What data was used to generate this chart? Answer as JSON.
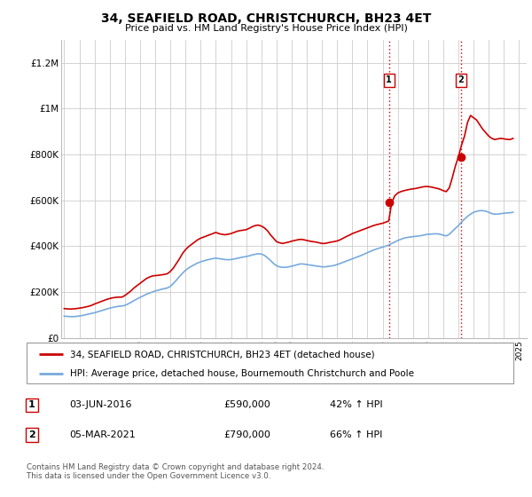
{
  "title": "34, SEAFIELD ROAD, CHRISTCHURCH, BH23 4ET",
  "subtitle": "Price paid vs. HM Land Registry's House Price Index (HPI)",
  "ylabel_ticks": [
    "£0",
    "£200K",
    "£400K",
    "£600K",
    "£800K",
    "£1M",
    "£1.2M"
  ],
  "ytick_values": [
    0,
    200000,
    400000,
    600000,
    800000,
    1000000,
    1200000
  ],
  "ylim": [
    0,
    1300000
  ],
  "xlim_start": 1994.8,
  "xlim_end": 2025.5,
  "red_color": "#cc0000",
  "blue_color": "#77aadd",
  "sale1_year": 2016.42,
  "sale1_price": 590000,
  "sale2_year": 2021.17,
  "sale2_price": 790000,
  "legend_red_label": "34, SEAFIELD ROAD, CHRISTCHURCH, BH23 4ET (detached house)",
  "legend_blue_label": "HPI: Average price, detached house, Bournemouth Christchurch and Poole",
  "table_row1": [
    "1",
    "03-JUN-2016",
    "£590,000",
    "42% ↑ HPI"
  ],
  "table_row2": [
    "2",
    "05-MAR-2021",
    "£790,000",
    "66% ↑ HPI"
  ],
  "footer": "Contains HM Land Registry data © Crown copyright and database right 2024.\nThis data is licensed under the Open Government Licence v3.0.",
  "grid_color": "#cccccc",
  "hpi_red_years": [
    1995.0,
    1995.2,
    1995.4,
    1995.6,
    1995.8,
    1996.0,
    1996.2,
    1996.4,
    1996.6,
    1996.8,
    1997.0,
    1997.2,
    1997.4,
    1997.6,
    1997.8,
    1998.0,
    1998.2,
    1998.4,
    1998.6,
    1998.8,
    1999.0,
    1999.2,
    1999.4,
    1999.6,
    1999.8,
    2000.0,
    2000.2,
    2000.4,
    2000.6,
    2000.8,
    2001.0,
    2001.2,
    2001.4,
    2001.6,
    2001.8,
    2002.0,
    2002.2,
    2002.4,
    2002.6,
    2002.8,
    2003.0,
    2003.2,
    2003.4,
    2003.6,
    2003.8,
    2004.0,
    2004.2,
    2004.4,
    2004.6,
    2004.8,
    2005.0,
    2005.2,
    2005.4,
    2005.6,
    2005.8,
    2006.0,
    2006.2,
    2006.4,
    2006.6,
    2006.8,
    2007.0,
    2007.2,
    2007.4,
    2007.6,
    2007.8,
    2008.0,
    2008.2,
    2008.4,
    2008.6,
    2008.8,
    2009.0,
    2009.2,
    2009.4,
    2009.6,
    2009.8,
    2010.0,
    2010.2,
    2010.4,
    2010.6,
    2010.8,
    2011.0,
    2011.2,
    2011.4,
    2011.6,
    2011.8,
    2012.0,
    2012.2,
    2012.4,
    2012.6,
    2012.8,
    2013.0,
    2013.2,
    2013.4,
    2013.6,
    2013.8,
    2014.0,
    2014.2,
    2014.4,
    2014.6,
    2014.8,
    2015.0,
    2015.2,
    2015.4,
    2015.6,
    2015.8,
    2016.0,
    2016.2,
    2016.4,
    2016.6,
    2016.8,
    2017.0,
    2017.2,
    2017.4,
    2017.6,
    2017.8,
    2018.0,
    2018.2,
    2018.4,
    2018.6,
    2018.8,
    2019.0,
    2019.2,
    2019.4,
    2019.6,
    2019.8,
    2020.0,
    2020.2,
    2020.4,
    2020.6,
    2020.8,
    2021.0,
    2021.2,
    2021.4,
    2021.6,
    2021.8,
    2022.0,
    2022.2,
    2022.4,
    2022.6,
    2022.8,
    2023.0,
    2023.2,
    2023.4,
    2023.6,
    2023.8,
    2024.0,
    2024.2,
    2024.4,
    2024.6
  ],
  "hpi_red_vals": [
    128000,
    127000,
    126000,
    127000,
    128000,
    130000,
    132000,
    135000,
    138000,
    142000,
    148000,
    153000,
    158000,
    163000,
    168000,
    172000,
    175000,
    177000,
    178000,
    178000,
    185000,
    195000,
    205000,
    218000,
    228000,
    238000,
    248000,
    258000,
    265000,
    270000,
    272000,
    273000,
    275000,
    277000,
    280000,
    290000,
    305000,
    325000,
    345000,
    368000,
    385000,
    398000,
    408000,
    418000,
    428000,
    435000,
    440000,
    445000,
    450000,
    455000,
    460000,
    455000,
    452000,
    450000,
    452000,
    455000,
    460000,
    465000,
    468000,
    470000,
    472000,
    478000,
    485000,
    490000,
    492000,
    488000,
    480000,
    468000,
    450000,
    435000,
    420000,
    415000,
    412000,
    415000,
    418000,
    422000,
    425000,
    428000,
    430000,
    428000,
    425000,
    422000,
    420000,
    418000,
    415000,
    412000,
    412000,
    415000,
    418000,
    420000,
    423000,
    428000,
    435000,
    442000,
    448000,
    455000,
    460000,
    465000,
    470000,
    475000,
    480000,
    485000,
    490000,
    494000,
    497000,
    500000,
    505000,
    510000,
    590000,
    620000,
    632000,
    638000,
    642000,
    645000,
    648000,
    650000,
    652000,
    655000,
    658000,
    660000,
    660000,
    658000,
    655000,
    652000,
    648000,
    642000,
    638000,
    655000,
    700000,
    750000,
    790000,
    840000,
    880000,
    940000,
    970000,
    960000,
    950000,
    930000,
    910000,
    895000,
    880000,
    870000,
    865000,
    868000,
    870000,
    868000,
    866000,
    865000,
    870000
  ],
  "hpi_blue_years": [
    1995.0,
    1995.2,
    1995.4,
    1995.6,
    1995.8,
    1996.0,
    1996.2,
    1996.4,
    1996.6,
    1996.8,
    1997.0,
    1997.2,
    1997.4,
    1997.6,
    1997.8,
    1998.0,
    1998.2,
    1998.4,
    1998.6,
    1998.8,
    1999.0,
    1999.2,
    1999.4,
    1999.6,
    1999.8,
    2000.0,
    2000.2,
    2000.4,
    2000.6,
    2000.8,
    2001.0,
    2001.2,
    2001.4,
    2001.6,
    2001.8,
    2002.0,
    2002.2,
    2002.4,
    2002.6,
    2002.8,
    2003.0,
    2003.2,
    2003.4,
    2003.6,
    2003.8,
    2004.0,
    2004.2,
    2004.4,
    2004.6,
    2004.8,
    2005.0,
    2005.2,
    2005.4,
    2005.6,
    2005.8,
    2006.0,
    2006.2,
    2006.4,
    2006.6,
    2006.8,
    2007.0,
    2007.2,
    2007.4,
    2007.6,
    2007.8,
    2008.0,
    2008.2,
    2008.4,
    2008.6,
    2008.8,
    2009.0,
    2009.2,
    2009.4,
    2009.6,
    2009.8,
    2010.0,
    2010.2,
    2010.4,
    2010.6,
    2010.8,
    2011.0,
    2011.2,
    2011.4,
    2011.6,
    2011.8,
    2012.0,
    2012.2,
    2012.4,
    2012.6,
    2012.8,
    2013.0,
    2013.2,
    2013.4,
    2013.6,
    2013.8,
    2014.0,
    2014.2,
    2014.4,
    2014.6,
    2014.8,
    2015.0,
    2015.2,
    2015.4,
    2015.6,
    2015.8,
    2016.0,
    2016.2,
    2016.4,
    2016.6,
    2016.8,
    2017.0,
    2017.2,
    2017.4,
    2017.6,
    2017.8,
    2018.0,
    2018.2,
    2018.4,
    2018.6,
    2018.8,
    2019.0,
    2019.2,
    2019.4,
    2019.6,
    2019.8,
    2020.0,
    2020.2,
    2020.4,
    2020.6,
    2020.8,
    2021.0,
    2021.2,
    2021.4,
    2021.6,
    2021.8,
    2022.0,
    2022.2,
    2022.4,
    2022.6,
    2022.8,
    2023.0,
    2023.2,
    2023.4,
    2023.6,
    2023.8,
    2024.0,
    2024.2,
    2024.4,
    2024.6
  ],
  "hpi_blue_vals": [
    95000,
    94000,
    93000,
    93000,
    94000,
    96000,
    98000,
    101000,
    104000,
    107000,
    110000,
    114000,
    118000,
    122000,
    126000,
    130000,
    133000,
    136000,
    138000,
    139000,
    142000,
    148000,
    155000,
    163000,
    170000,
    177000,
    183000,
    190000,
    195000,
    200000,
    205000,
    208000,
    212000,
    215000,
    218000,
    225000,
    238000,
    252000,
    268000,
    282000,
    295000,
    305000,
    313000,
    320000,
    327000,
    332000,
    336000,
    340000,
    343000,
    346000,
    348000,
    346000,
    344000,
    342000,
    341000,
    342000,
    344000,
    347000,
    350000,
    353000,
    355000,
    358000,
    362000,
    365000,
    367000,
    366000,
    360000,
    350000,
    338000,
    325000,
    315000,
    310000,
    308000,
    308000,
    310000,
    313000,
    316000,
    320000,
    323000,
    322000,
    320000,
    318000,
    316000,
    314000,
    312000,
    310000,
    310000,
    312000,
    314000,
    316000,
    320000,
    325000,
    330000,
    335000,
    340000,
    345000,
    350000,
    355000,
    360000,
    366000,
    372000,
    378000,
    383000,
    388000,
    392000,
    396000,
    400000,
    405000,
    412000,
    418000,
    425000,
    430000,
    435000,
    438000,
    440000,
    442000,
    443000,
    445000,
    447000,
    450000,
    452000,
    453000,
    454000,
    454000,
    452000,
    448000,
    445000,
    452000,
    465000,
    478000,
    490000,
    505000,
    518000,
    530000,
    540000,
    548000,
    552000,
    555000,
    555000,
    553000,
    548000,
    542000,
    540000,
    540000,
    542000,
    544000,
    545000,
    546000,
    548000
  ]
}
